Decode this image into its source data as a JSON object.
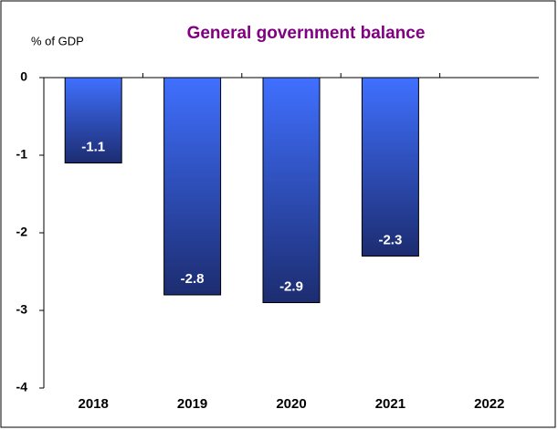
{
  "chart_data": {
    "type": "bar",
    "title": "General government balance",
    "y_label": "% of GDP",
    "categories": [
      "2018",
      "2019",
      "2020",
      "2021",
      "2022"
    ],
    "values": [
      -1.1,
      -2.8,
      -2.9,
      -2.3,
      null
    ],
    "color": "#2f55e8",
    "ylim": [
      -4,
      0
    ],
    "yticks": [
      -4,
      -3,
      -2,
      -1,
      0
    ],
    "grid": false
  }
}
